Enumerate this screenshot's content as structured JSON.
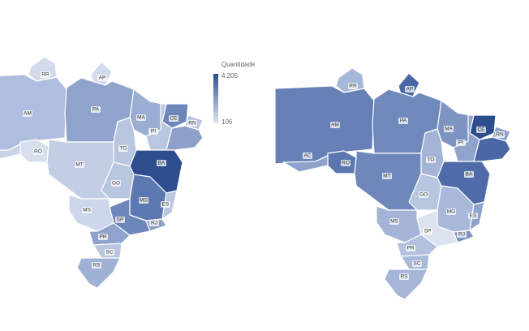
{
  "legend": {
    "title": "Quantidade",
    "max": "4.205",
    "min": "106"
  },
  "maps": [
    {
      "states": [
        "RR",
        "AP",
        "AM",
        "PA",
        "MA",
        "CE",
        "RN",
        "PI",
        "RO",
        "TO",
        "MT",
        "BA",
        "GO",
        "MG",
        "MS",
        "ES",
        "SP",
        "RJ",
        "PR",
        "SC",
        "RS"
      ]
    },
    {
      "states": [
        "RR",
        "AP",
        "AM",
        "PA",
        "MA",
        "CE",
        "RN",
        "PI",
        "AC",
        "RO",
        "TO",
        "MT",
        "BA",
        "GO",
        "MG",
        "MS",
        "ES",
        "SP",
        "RJ",
        "PR",
        "SC",
        "RS"
      ]
    }
  ]
}
